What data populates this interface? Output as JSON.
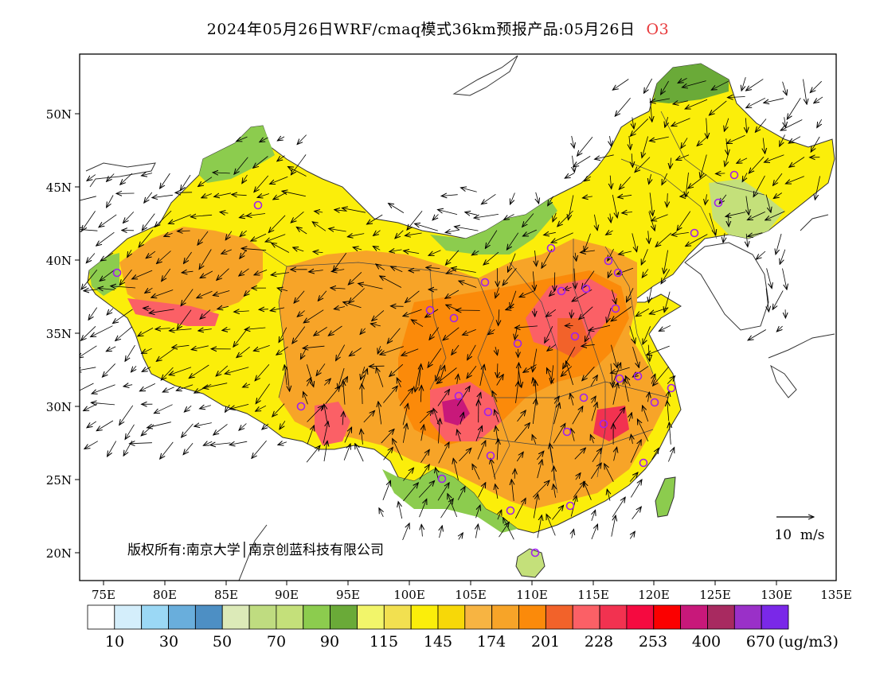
{
  "title": {
    "text": "2024年05月26日WRF/cmaq模式36km预报产品:05月26日",
    "pollutant": "O3"
  },
  "axes": {
    "lat_labels": [
      "50N",
      "45N",
      "40N",
      "35N",
      "30N",
      "25N",
      "20N"
    ],
    "lon_labels": [
      "75E",
      "80E",
      "85E",
      "90E",
      "95E",
      "100E",
      "105E",
      "110E",
      "115E",
      "120E",
      "125E",
      "130E",
      "135E"
    ]
  },
  "copyright": "版权所有:南京大学│南京创蓝科技有限公司",
  "wind_reference": "10  m/s",
  "colorbar": {
    "labels": [
      "10",
      "30",
      "50",
      "70",
      "90",
      "115",
      "145",
      "174",
      "201",
      "228",
      "253",
      "400",
      "670"
    ],
    "unit": "(ug/m3)",
    "colors": [
      "#ffffff",
      "#d4eefb",
      "#9bd8f5",
      "#69aedc",
      "#4d8fc4",
      "#dceab8",
      "#bfdc80",
      "#c4e07a",
      "#8ccc4e",
      "#6aaa38",
      "#f2f56a",
      "#f2e050",
      "#fbee0a",
      "#f7d808",
      "#f7b442",
      "#f7a428",
      "#fb8a0a",
      "#f2622a",
      "#fb6066",
      "#f23250",
      "#f50a40",
      "#fb0000",
      "#c8187a",
      "#a82a60",
      "#9a30c8",
      "#7a28e8"
    ]
  },
  "colors": {
    "cities_marker": "#a020f0",
    "title_pollutant": "#e8393b"
  }
}
